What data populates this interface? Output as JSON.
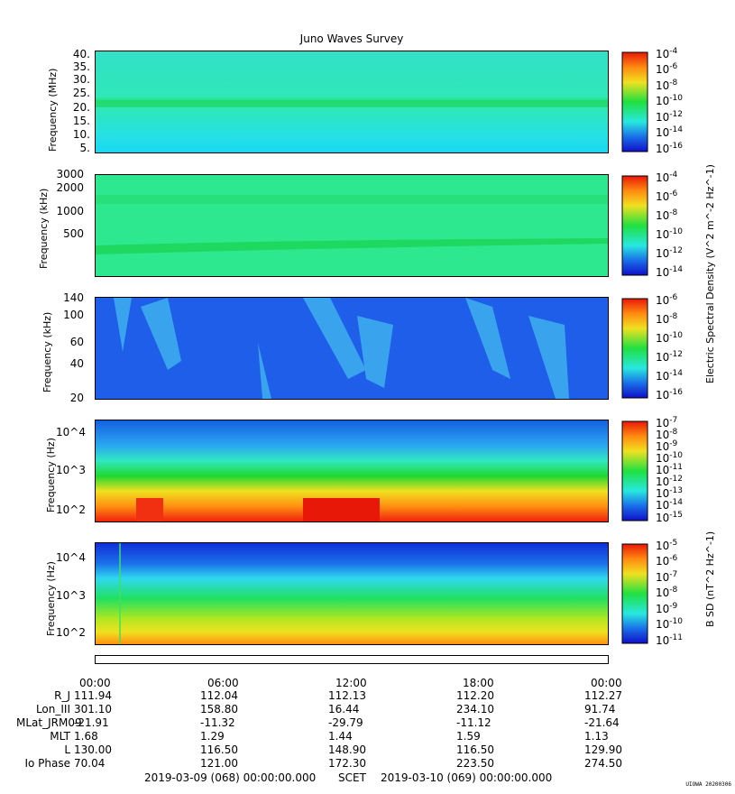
{
  "title": "Juno Waves Survey",
  "panels": [
    {
      "ylabel": "Frequency (MHz)",
      "yticks": [
        "40.",
        "35.",
        "30.",
        "25.",
        "20.",
        "15.",
        "10.",
        "5."
      ],
      "colorbar_ticks": [
        "10-4",
        "10-6",
        "10-8",
        "10-10",
        "10-12",
        "10-14",
        "10-16"
      ]
    },
    {
      "ylabel": "Frequency (kHz)",
      "yticks": [
        "3000",
        "2000",
        "1000",
        "500"
      ],
      "colorbar_ticks": [
        "10-4",
        "10-6",
        "10-8",
        "10-10",
        "10-12",
        "10-14"
      ]
    },
    {
      "ylabel": "Frequency (kHz)",
      "yticks": [
        "140",
        "100",
        "60",
        "40",
        "20"
      ],
      "colorbar_ticks": [
        "10-6",
        "10-8",
        "10-10",
        "10-12",
        "10-14",
        "10-16"
      ]
    },
    {
      "ylabel": "Frequency (Hz)",
      "yticks": [
        "10^4",
        "10^3",
        "10^2"
      ],
      "colorbar_ticks": [
        "10-7",
        "10-8",
        "10-9",
        "10-10",
        "10-11",
        "10-12",
        "10-13",
        "10-14",
        "10-15"
      ]
    },
    {
      "ylabel": "Frequency (Hz)",
      "yticks": [
        "10^4",
        "10^3",
        "10^2"
      ],
      "colorbar_ticks": [
        "10-5",
        "10-6",
        "10-7",
        "10-8",
        "10-9",
        "10-10",
        "10-11"
      ]
    }
  ],
  "colorbar_labels": {
    "electric": "Electric Spectral Density (V^2 m^-2 Hz^-1)",
    "magnetic": "B SD (nT^2 Hz^-1)"
  },
  "time_labels": [
    "00:00",
    "06:00",
    "12:00",
    "18:00",
    "00:00"
  ],
  "ephemeris": [
    {
      "label": "R_J",
      "values": [
        "111.94",
        "112.04",
        "112.13",
        "112.20",
        "112.27"
      ]
    },
    {
      "label": "Lon_III",
      "values": [
        "301.10",
        "158.80",
        "16.44",
        "234.10",
        "91.74"
      ]
    },
    {
      "label": "MLat_JRM09",
      "values": [
        "-21.91",
        "-11.32",
        "-29.79",
        "-11.12",
        "-21.64"
      ]
    },
    {
      "label": "MLT",
      "values": [
        "1.68",
        "1.29",
        "1.44",
        "1.59",
        "1.13"
      ]
    },
    {
      "label": "L",
      "values": [
        "130.00",
        "116.50",
        "148.90",
        "116.50",
        "129.90"
      ]
    },
    {
      "label": "Io Phase",
      "values": [
        "70.04",
        "121.00",
        "172.30",
        "223.50",
        "274.50"
      ]
    }
  ],
  "footer": {
    "start": "2019-03-09 (068) 00:00:00.000",
    "scet": "SCET",
    "end": "2019-03-10 (069) 00:00:00.000"
  },
  "badge": "UIOWA 20200306",
  "chart_data": {
    "type": "heatmap",
    "title": "Juno Waves Survey",
    "x_range": [
      "2019-03-09 00:00",
      "2019-03-10 00:00"
    ],
    "panels": [
      {
        "ylabel": "Frequency (MHz)",
        "ylim": [
          3,
          41
        ],
        "yscale": "linear",
        "colorbar_range": [
          "1e-17",
          "1e-4"
        ],
        "colorbar_label": "Electric Spectral Density"
      },
      {
        "ylabel": "Frequency (kHz)",
        "ylim": [
          140,
          3000
        ],
        "yscale": "log",
        "colorbar_range": [
          "1e-15",
          "1e-4"
        ],
        "colorbar_label": "Electric Spectral Density"
      },
      {
        "ylabel": "Frequency (kHz)",
        "ylim": [
          20,
          140
        ],
        "yscale": "log",
        "colorbar_range": [
          "1e-17",
          "1e-6"
        ],
        "colorbar_label": "Electric Spectral Density"
      },
      {
        "ylabel": "Frequency (Hz)",
        "ylim": [
          50,
          20000
        ],
        "yscale": "log",
        "colorbar_range": [
          "1e-15",
          "1e-7"
        ],
        "colorbar_label": "Electric Spectral Density"
      },
      {
        "ylabel": "Frequency (Hz)",
        "ylim": [
          50,
          20000
        ],
        "yscale": "log",
        "colorbar_range": [
          "1e-11",
          "1e-5"
        ],
        "colorbar_label": "B SD"
      }
    ]
  }
}
